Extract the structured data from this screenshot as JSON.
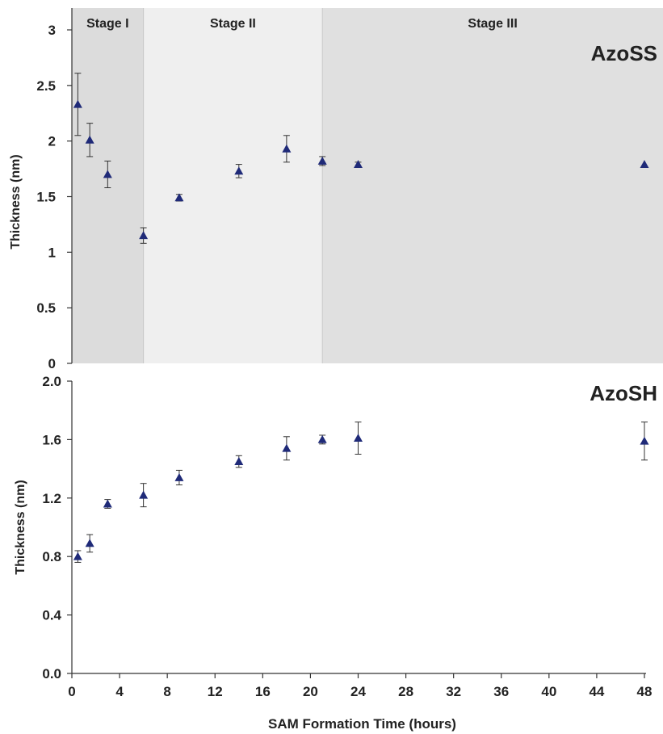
{
  "chart_data": [
    {
      "type": "scatter",
      "panel_label": "AzoSS",
      "ylabel": "Thickness (nm)",
      "ylim": [
        0,
        3
      ],
      "yticks": [
        0,
        0.5,
        1,
        1.5,
        2,
        2.5,
        3
      ],
      "ytick_labels": [
        "0",
        "0.5",
        "1",
        "1.5",
        "2",
        "2.5",
        "3"
      ],
      "stages": [
        {
          "label": "Stage I",
          "x_start": 0,
          "x_end": 6,
          "color": "#dcdcdc"
        },
        {
          "label": "Stage II",
          "x_start": 6,
          "x_end": 21,
          "color": "#efefef"
        },
        {
          "label": "Stage III",
          "x_start": 21,
          "x_end": 48,
          "color": "#e0e0e0"
        }
      ],
      "marker_color": "#1f2a78",
      "points": [
        {
          "x": 0.5,
          "y": 2.33,
          "err": 0.28
        },
        {
          "x": 1.5,
          "y": 2.01,
          "err": 0.15
        },
        {
          "x": 3,
          "y": 1.7,
          "err": 0.12
        },
        {
          "x": 6,
          "y": 1.15,
          "err": 0.07
        },
        {
          "x": 9,
          "y": 1.49,
          "err": 0.03
        },
        {
          "x": 14,
          "y": 1.73,
          "err": 0.06
        },
        {
          "x": 18,
          "y": 1.93,
          "err": 0.12
        },
        {
          "x": 21,
          "y": 1.82,
          "err": 0.04
        },
        {
          "x": 24,
          "y": 1.79,
          "err": 0.02
        },
        {
          "x": 48,
          "y": 1.79,
          "err": 0.0
        }
      ]
    },
    {
      "type": "scatter",
      "panel_label": "AzoSH",
      "ylabel": "Thickness (nm)",
      "xlabel": "SAM Formation Time (hours)",
      "ylim": [
        0,
        2
      ],
      "yticks": [
        0,
        0.4,
        0.8,
        1.2,
        1.6,
        2.0
      ],
      "ytick_labels": [
        "0.0",
        "0.4",
        "0.8",
        "1.2",
        "1.6",
        "2.0"
      ],
      "xlim": [
        0,
        48
      ],
      "xticks": [
        0,
        4,
        8,
        12,
        16,
        20,
        24,
        28,
        32,
        36,
        40,
        44,
        48
      ],
      "xtick_labels": [
        "0",
        "4",
        "8",
        "12",
        "16",
        "20",
        "24",
        "28",
        "32",
        "36",
        "40",
        "44",
        "48"
      ],
      "marker_color": "#1f2a78",
      "points": [
        {
          "x": 0.5,
          "y": 0.8,
          "err": 0.04
        },
        {
          "x": 1.5,
          "y": 0.89,
          "err": 0.06
        },
        {
          "x": 3,
          "y": 1.16,
          "err": 0.03
        },
        {
          "x": 6,
          "y": 1.22,
          "err": 0.08
        },
        {
          "x": 9,
          "y": 1.34,
          "err": 0.05
        },
        {
          "x": 14,
          "y": 1.45,
          "err": 0.04
        },
        {
          "x": 18,
          "y": 1.54,
          "err": 0.08
        },
        {
          "x": 21,
          "y": 1.6,
          "err": 0.03
        },
        {
          "x": 24,
          "y": 1.61,
          "err": 0.11
        },
        {
          "x": 48,
          "y": 1.59,
          "err": 0.13
        }
      ]
    }
  ]
}
